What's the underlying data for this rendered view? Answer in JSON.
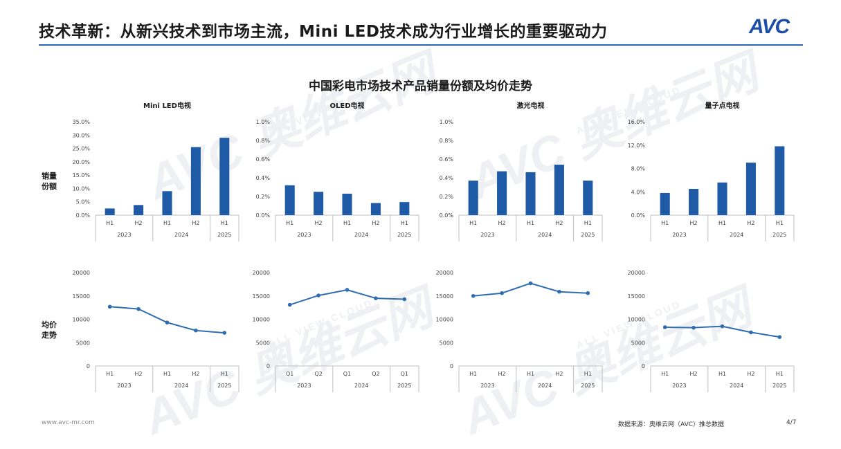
{
  "header": {
    "title": "技术革新：从新兴技术到市场主流，Mini LED技术成为行业增长的重要驱动力",
    "logo_text": "AVC"
  },
  "main_title": "中国彩电市场技术产品销量份额及均价走势",
  "row_labels": {
    "share_line1": "销量",
    "share_line2": "份额",
    "price_line1": "均价",
    "price_line2": "走势"
  },
  "watermark": {
    "brand": "AVC 奥维云网",
    "sub": "ALL VIEW CLOUD"
  },
  "colors": {
    "bar": "#1f5aa6",
    "line": "#2e6db0",
    "accent": "#2a63b8",
    "grid": "#e6e6e6",
    "axis": "#bfbfbf"
  },
  "chart_data": [
    {
      "type": "bar",
      "title": "Mini LED电视",
      "categories": [
        "H1",
        "H2",
        "H1",
        "H2",
        "H1"
      ],
      "groups": [
        {
          "label": "2023",
          "span": 2
        },
        {
          "label": "2024",
          "span": 2
        },
        {
          "label": "2025",
          "span": 1
        }
      ],
      "values": [
        2.5,
        3.8,
        9.0,
        25.5,
        29.0
      ],
      "unit": "%",
      "ylim": [
        0,
        35
      ],
      "yticks": [
        0,
        5,
        10,
        15,
        20,
        25,
        30,
        35
      ],
      "ytick_decimals": 1
    },
    {
      "type": "bar",
      "title": "OLED电视",
      "categories": [
        "H1",
        "H2",
        "H1",
        "H2",
        "H1"
      ],
      "groups": [
        {
          "label": "2023",
          "span": 2
        },
        {
          "label": "2024",
          "span": 2
        },
        {
          "label": "2025",
          "span": 1
        }
      ],
      "values": [
        0.32,
        0.25,
        0.23,
        0.13,
        0.14
      ],
      "unit": "%",
      "ylim": [
        0,
        1
      ],
      "yticks": [
        0,
        0.2,
        0.4,
        0.6,
        0.8,
        1.0
      ],
      "ytick_decimals": 1
    },
    {
      "type": "bar",
      "title": "激光电视",
      "categories": [
        "H1",
        "H2",
        "H1",
        "H2",
        "H1"
      ],
      "groups": [
        {
          "label": "2023",
          "span": 2
        },
        {
          "label": "2024",
          "span": 2
        },
        {
          "label": "2025",
          "span": 1
        }
      ],
      "values": [
        0.37,
        0.47,
        0.46,
        0.54,
        0.37
      ],
      "unit": "%",
      "ylim": [
        0,
        1
      ],
      "yticks": [
        0,
        0.2,
        0.4,
        0.6,
        0.8,
        1.0
      ],
      "ytick_decimals": 1
    },
    {
      "type": "bar",
      "title": "量子点电视",
      "categories": [
        "H1",
        "H2",
        "H1",
        "H2",
        "H1"
      ],
      "groups": [
        {
          "label": "2023",
          "span": 2
        },
        {
          "label": "2024",
          "span": 2
        },
        {
          "label": "2025",
          "span": 1
        }
      ],
      "values": [
        3.8,
        4.5,
        5.6,
        9.0,
        11.8
      ],
      "unit": "%",
      "ylim": [
        0,
        16
      ],
      "yticks": [
        0,
        4,
        8,
        12,
        16
      ],
      "ytick_decimals": 1
    },
    {
      "type": "line",
      "title": "",
      "categories": [
        "H1",
        "H2",
        "H1",
        "H2",
        "H1"
      ],
      "groups": [
        {
          "label": "2023",
          "span": 2
        },
        {
          "label": "2024",
          "span": 2
        },
        {
          "label": "2025",
          "span": 1
        }
      ],
      "values": [
        12700,
        12200,
        9300,
        7600,
        7100
      ],
      "ylim": [
        0,
        20000
      ],
      "yticks": [
        0,
        5000,
        10000,
        15000,
        20000
      ]
    },
    {
      "type": "line",
      "title": "",
      "categories": [
        "Q1",
        "Q2",
        "Q1",
        "Q2",
        "Q1"
      ],
      "groups": [
        {
          "label": "2023",
          "span": 2
        },
        {
          "label": "2024",
          "span": 2
        },
        {
          "label": "2025",
          "span": 1
        }
      ],
      "values": [
        13100,
        15100,
        16300,
        14500,
        14300
      ],
      "ylim": [
        0,
        20000
      ],
      "yticks": [
        0,
        5000,
        10000,
        15000,
        20000
      ]
    },
    {
      "type": "line",
      "title": "",
      "categories": [
        "H1",
        "H2",
        "H1",
        "H2",
        "H1"
      ],
      "groups": [
        {
          "label": "2023",
          "span": 2
        },
        {
          "label": "2024",
          "span": 2
        },
        {
          "label": "2025",
          "span": 1
        }
      ],
      "values": [
        15000,
        15600,
        17700,
        15900,
        15600
      ],
      "ylim": [
        0,
        20000
      ],
      "yticks": [
        0,
        5000,
        10000,
        15000,
        20000
      ]
    },
    {
      "type": "line",
      "title": "",
      "categories": [
        "H1",
        "H2",
        "H1",
        "H2",
        "H1"
      ],
      "groups": [
        {
          "label": "2023",
          "span": 2
        },
        {
          "label": "2024",
          "span": 2
        },
        {
          "label": "2025",
          "span": 1
        }
      ],
      "values": [
        8300,
        8200,
        8500,
        7200,
        6200
      ],
      "ylim": [
        0,
        20000
      ],
      "yticks": [
        0,
        5000,
        10000,
        15000,
        20000
      ]
    }
  ],
  "footer": {
    "website": "www.avc-mr.com",
    "source": "数据来源：奥维云网（AVC）推总数据",
    "page": "4/7"
  }
}
